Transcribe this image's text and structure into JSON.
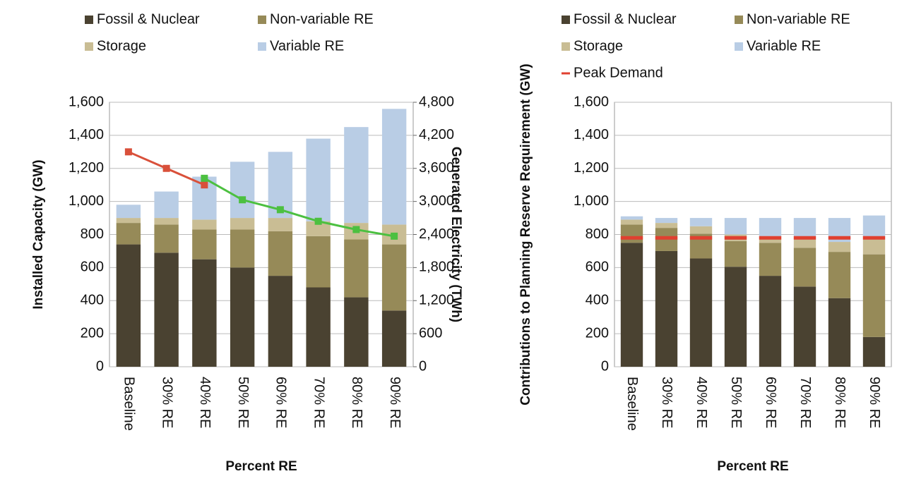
{
  "chart_data": [
    {
      "type": "bar",
      "categories": [
        "Baseline",
        "30% RE",
        "40% RE",
        "50% RE",
        "60% RE",
        "70% RE",
        "80% RE",
        "90% RE"
      ],
      "series": [
        {
          "name": "Fossil & Nuclear",
          "color": "#4a4231",
          "values": [
            740,
            690,
            650,
            600,
            550,
            480,
            420,
            340
          ]
        },
        {
          "name": "Non-variable RE",
          "color": "#968a58",
          "values": [
            130,
            170,
            180,
            230,
            270,
            310,
            350,
            400
          ]
        },
        {
          "name": "Storage",
          "color": "#c9bd94",
          "values": [
            30,
            40,
            60,
            70,
            80,
            90,
            100,
            120
          ]
        },
        {
          "name": "Variable RE",
          "color": "#b9cde5",
          "values": [
            80,
            160,
            260,
            340,
            400,
            500,
            580,
            700
          ]
        },
        {
          "color": "#d9503a",
          "line": true,
          "values": [
            1300,
            1200,
            1100,
            null,
            null,
            null,
            null,
            null
          ]
        },
        {
          "color": "#4cc040",
          "line": true,
          "axis": "y2",
          "values": [
            null,
            null,
            3420,
            3030,
            2850,
            2640,
            2490,
            2370
          ]
        }
      ],
      "ylabel": "Installed Capacity (GW)",
      "y2label": "Generated Electricity (TWh)",
      "xlabel": "Percent RE",
      "ylim": [
        0,
        1600
      ],
      "yticks": [
        0,
        200,
        400,
        600,
        800,
        {
          "value": 1000,
          "label": "1,000"
        },
        {
          "value": 1200,
          "label": "1,200"
        },
        {
          "value": 1400,
          "label": "1,400"
        },
        {
          "value": 1600,
          "label": "1,600"
        }
      ],
      "y2lim": [
        0,
        4800
      ],
      "y2ticks": [
        0,
        600,
        {
          "value": 1200,
          "label": "1,200"
        },
        {
          "value": 1800,
          "label": "1,800"
        },
        {
          "value": 2400,
          "label": "2,400"
        },
        {
          "value": 3000,
          "label": "3,000"
        },
        {
          "value": 3600,
          "label": "3,600"
        },
        {
          "value": 4200,
          "label": "4,200"
        },
        {
          "value": 4800,
          "label": "4,800"
        }
      ],
      "grid": true
    },
    {
      "type": "bar",
      "categories": [
        "Baseline",
        "30% RE",
        "40% RE",
        "50% RE",
        "60% RE",
        "70% RE",
        "80% RE",
        "90% RE"
      ],
      "series": [
        {
          "name": "Fossil & Nuclear",
          "color": "#4a4231",
          "values": [
            750,
            700,
            655,
            605,
            550,
            485,
            415,
            180
          ]
        },
        {
          "name": "Non-variable RE",
          "color": "#968a58",
          "values": [
            110,
            140,
            150,
            155,
            200,
            235,
            280,
            500
          ]
        },
        {
          "name": "Storage",
          "color": "#c9bd94",
          "values": [
            30,
            30,
            45,
            40,
            40,
            50,
            60,
            90
          ]
        },
        {
          "name": "Variable RE",
          "color": "#b9cde5",
          "values": [
            20,
            30,
            50,
            100,
            110,
            130,
            145,
            145
          ]
        }
      ],
      "peak_demand": {
        "name": "Peak Demand",
        "color": "#e04030",
        "values": [
          780,
          780,
          780,
          780,
          780,
          780,
          780,
          780
        ]
      },
      "ylabel": "Contributions to Planning Reserve Requirement (GW)",
      "xlabel": "Percent RE",
      "ylim": [
        0,
        1600
      ],
      "yticks": [
        0,
        200,
        400,
        600,
        800,
        {
          "value": 1000,
          "label": "1,000"
        },
        {
          "value": 1200,
          "label": "1,200"
        },
        {
          "value": 1400,
          "label": "1,400"
        },
        {
          "value": 1600,
          "label": "1,600"
        }
      ],
      "grid": true
    }
  ]
}
